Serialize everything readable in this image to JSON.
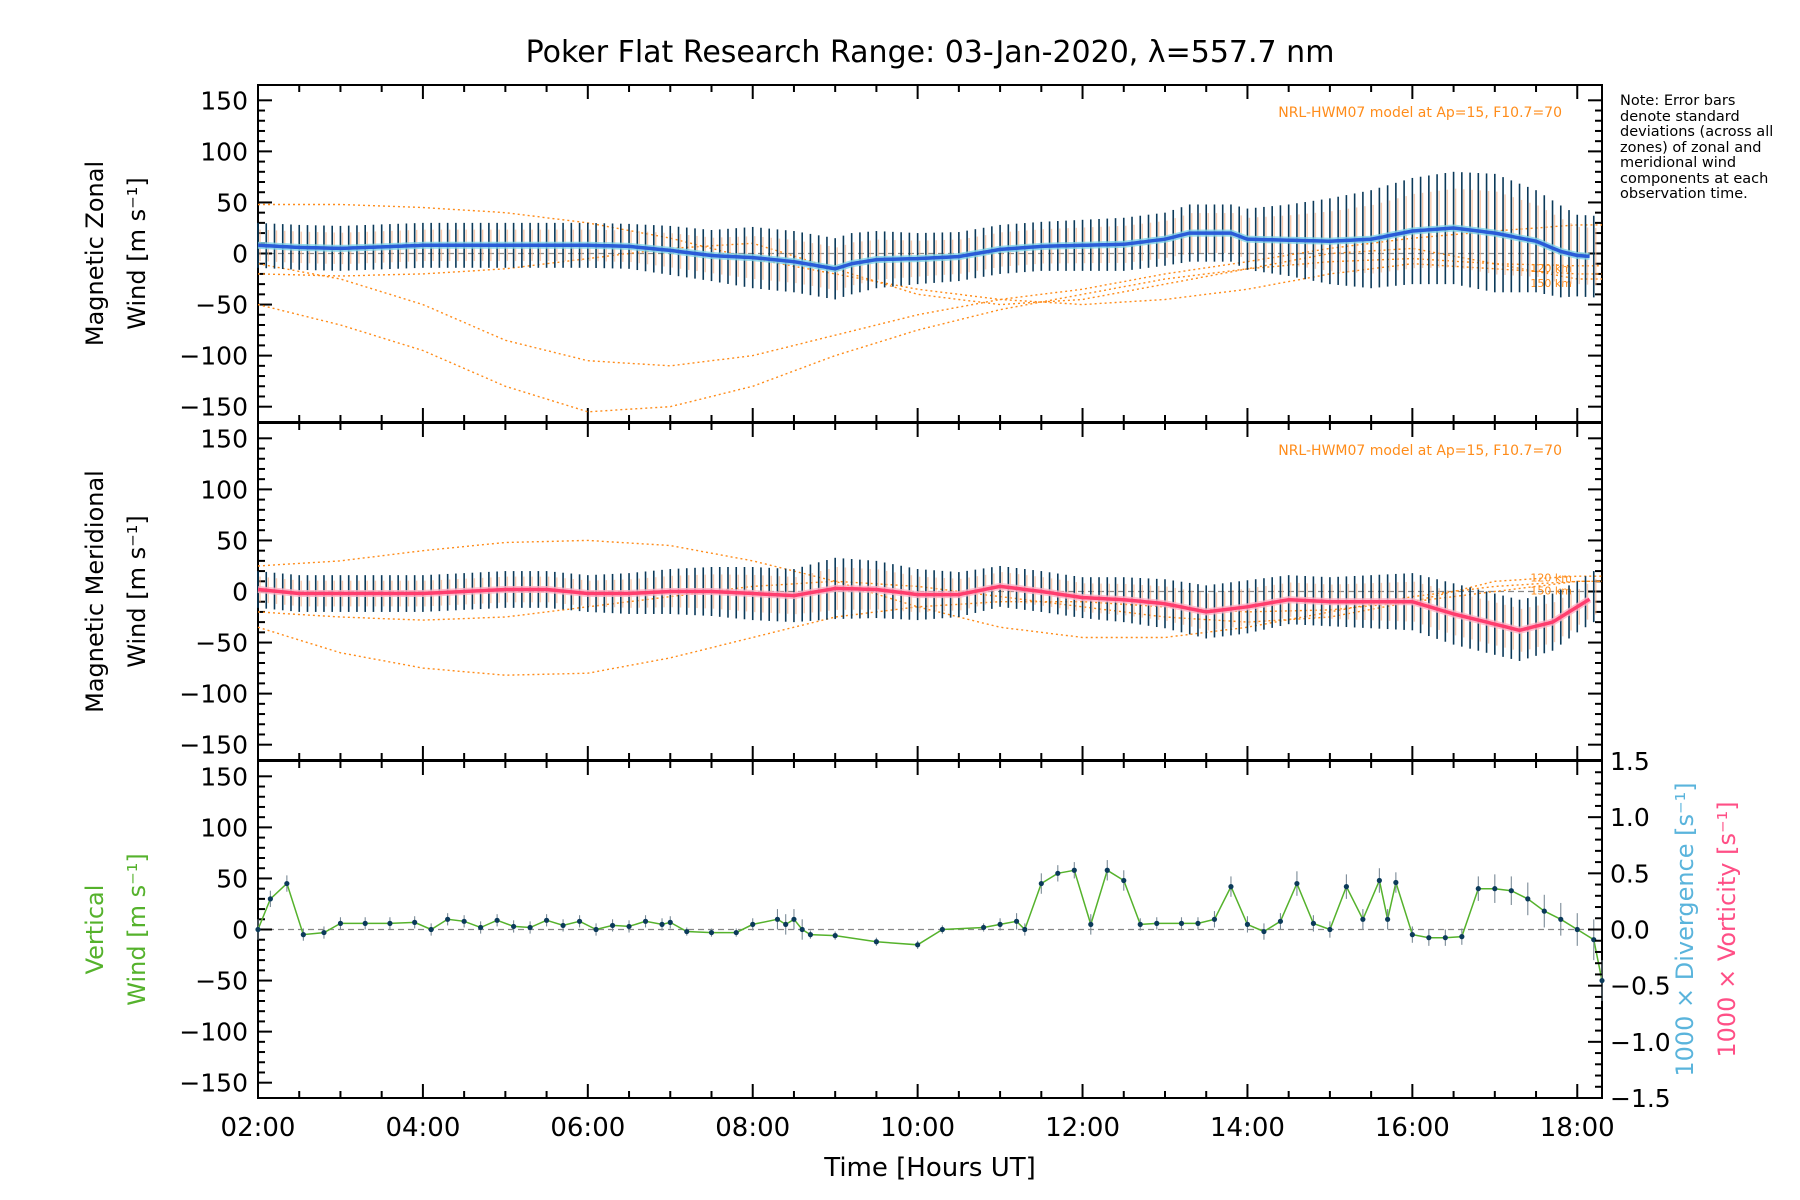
{
  "figure": {
    "title": "Poker Flat Research Range: 03-Jan-2020, λ=557.7 nm",
    "xlabel": "Time [Hours UT]",
    "note": "Note: Error bars denote standard deviations (across all zones) of zonal and meridional wind components at each observation time.",
    "model_label": "NRL-HWM07 model at Ap=15, F10.7=70",
    "height_labels": [
      "120 km",
      "150 km"
    ]
  },
  "colors": {
    "zonal_mean": "#2a5bd7",
    "zonal_highlight": "#7fd3e8",
    "meridional_mean": "#ff3d6e",
    "vertical": "#55b22c",
    "vertical_points": "#0b3a5a",
    "model": "#ff8c1a",
    "scatter": "#b9b2e6",
    "divergence_axis": "#5ab4dc",
    "vorticity_axis": "#ff4f86",
    "errbar": "#0b3a5a"
  },
  "chart_data": [
    {
      "panel": "zonal",
      "type": "line",
      "ylabel_line1": "Magnetic Zonal",
      "ylabel_line2": "Wind [m s⁻¹]",
      "xlim": [
        2.0,
        18.3
      ],
      "ylim": [
        -165,
        165
      ],
      "yticks": [
        -150,
        -100,
        -50,
        0,
        50,
        100,
        150
      ],
      "xticks": [
        "02:00",
        "04:00",
        "06:00",
        "08:00",
        "10:00",
        "12:00",
        "14:00",
        "16:00",
        "18:00"
      ],
      "mean_wind": {
        "x": [
          2.0,
          2.5,
          3.0,
          4.0,
          5.0,
          6.0,
          6.5,
          7.0,
          7.5,
          8.0,
          8.5,
          9.0,
          9.2,
          9.5,
          10.0,
          10.5,
          11.0,
          11.5,
          12.0,
          12.5,
          13.0,
          13.3,
          13.8,
          14.0,
          14.5,
          15.0,
          15.5,
          16.0,
          16.5,
          17.0,
          17.5,
          17.8,
          18.0,
          18.2
        ],
        "y": [
          8,
          6,
          5,
          8,
          8,
          8,
          7,
          3,
          -2,
          -4,
          -8,
          -15,
          -10,
          -6,
          -5,
          -3,
          4,
          7,
          8,
          9,
          14,
          20,
          20,
          14,
          13,
          12,
          14,
          22,
          25,
          20,
          12,
          2,
          -2,
          -3
        ],
        "errors": [
          22,
          22,
          22,
          22,
          22,
          22,
          22,
          24,
          25,
          30,
          30,
          30,
          30,
          28,
          25,
          24,
          24,
          24,
          25,
          26,
          26,
          28,
          28,
          30,
          35,
          42,
          48,
          52,
          55,
          58,
          50,
          45,
          40,
          40
        ]
      },
      "model_curves": [
        {
          "x": [
            2.0,
            3.0,
            4.0,
            5.0,
            6.0,
            7.0,
            8.0,
            9.0,
            10.0,
            11.0,
            12.0,
            13.0,
            14.0,
            15.0,
            16.0,
            17.0,
            18.0,
            18.3
          ],
          "y": [
            -50,
            -70,
            -95,
            -130,
            -155,
            -150,
            -130,
            -100,
            -75,
            -55,
            -40,
            -25,
            -15,
            -8,
            -5,
            -10,
            -12,
            -12
          ]
        },
        {
          "x": [
            2.0,
            3.0,
            4.0,
            5.0,
            6.0,
            7.0,
            8.0,
            9.0,
            10.0,
            11.0,
            12.0,
            13.0,
            14.0,
            15.0,
            16.0,
            17.0,
            18.0,
            18.3
          ],
          "y": [
            -10,
            -25,
            -50,
            -85,
            -105,
            -110,
            -100,
            -80,
            -60,
            -45,
            -35,
            -20,
            -8,
            5,
            15,
            22,
            28,
            28
          ]
        },
        {
          "x": [
            2.0,
            3.0,
            4.0,
            5.0,
            6.0,
            7.0,
            8.0,
            9.0,
            10.0,
            11.0,
            12.0,
            13.0,
            14.0,
            15.0,
            16.0,
            17.0,
            18.0,
            18.3
          ],
          "y": [
            48,
            48,
            45,
            40,
            30,
            15,
            -5,
            -20,
            -35,
            -45,
            -50,
            -45,
            -35,
            -20,
            -10,
            -15,
            -20,
            -20
          ]
        },
        {
          "x": [
            2.0,
            3.0,
            4.0,
            5.0,
            6.0,
            7.0,
            8.0,
            9.0,
            10.0,
            11.0,
            12.0,
            13.0,
            14.0,
            15.0,
            16.0,
            17.0,
            18.0,
            18.3
          ],
          "y": [
            -20,
            -22,
            -20,
            -15,
            -5,
            5,
            10,
            -15,
            -40,
            -50,
            -45,
            -30,
            -15,
            0,
            5,
            -10,
            -25,
            -25
          ]
        }
      ]
    },
    {
      "panel": "meridional",
      "type": "line",
      "ylabel_line1": "Magnetic Meridional",
      "ylabel_line2": "Wind [m s⁻¹]",
      "xlim": [
        2.0,
        18.3
      ],
      "ylim": [
        -165,
        165
      ],
      "yticks": [
        -150,
        -100,
        -50,
        0,
        50,
        100,
        150
      ],
      "mean_wind": {
        "x": [
          2.0,
          2.5,
          3.0,
          4.0,
          5.0,
          5.5,
          6.0,
          6.5,
          7.0,
          7.5,
          8.0,
          8.5,
          9.0,
          9.5,
          10.0,
          10.5,
          11.0,
          11.5,
          12.0,
          12.5,
          13.0,
          13.5,
          14.0,
          14.5,
          15.0,
          15.5,
          16.0,
          16.5,
          17.0,
          17.3,
          17.7,
          18.0,
          18.2
        ],
        "y": [
          2,
          -2,
          -2,
          -2,
          2,
          2,
          -2,
          -2,
          0,
          0,
          -2,
          -4,
          3,
          2,
          -3,
          -3,
          5,
          0,
          -6,
          -8,
          -12,
          -20,
          -15,
          -8,
          -10,
          -10,
          -10,
          -22,
          -32,
          -38,
          -30,
          -15,
          -5
        ],
        "errors": [
          18,
          18,
          18,
          18,
          18,
          18,
          18,
          20,
          22,
          24,
          26,
          26,
          30,
          28,
          25,
          22,
          20,
          20,
          20,
          22,
          24,
          26,
          26,
          24,
          24,
          26,
          28,
          30,
          30,
          30,
          28,
          25,
          25
        ]
      },
      "model_curves": [
        {
          "x": [
            2.0,
            3.0,
            4.0,
            5.0,
            6.0,
            7.0,
            8.0,
            9.0,
            10.0,
            11.0,
            12.0,
            13.0,
            14.0,
            15.0,
            16.0,
            17.0,
            18.0,
            18.3
          ],
          "y": [
            -35,
            -60,
            -75,
            -82,
            -80,
            -65,
            -45,
            -25,
            -15,
            -10,
            -10,
            -15,
            -20,
            -18,
            -10,
            0,
            10,
            10
          ]
        },
        {
          "x": [
            2.0,
            3.0,
            4.0,
            5.0,
            6.0,
            7.0,
            8.0,
            9.0,
            10.0,
            11.0,
            12.0,
            13.0,
            14.0,
            15.0,
            16.0,
            17.0,
            18.0,
            18.3
          ],
          "y": [
            25,
            30,
            40,
            48,
            50,
            45,
            30,
            10,
            -15,
            -35,
            -45,
            -45,
            -35,
            -20,
            -5,
            5,
            10,
            10
          ]
        },
        {
          "x": [
            2.0,
            3.0,
            4.0,
            5.0,
            6.0,
            7.0,
            8.0,
            9.0,
            10.0,
            11.0,
            12.0,
            13.0,
            14.0,
            15.0,
            16.0,
            17.0,
            18.0,
            18.3
          ],
          "y": [
            -20,
            -25,
            -28,
            -25,
            -15,
            -5,
            5,
            10,
            5,
            -5,
            -15,
            -25,
            -30,
            -25,
            -10,
            10,
            15,
            15
          ]
        }
      ]
    },
    {
      "panel": "vertical",
      "type": "line",
      "ylabel_line1": "Vertical",
      "ylabel_line2": "Wind [m s⁻¹]",
      "ylabel_right1": "1000 × Divergence [s⁻¹]",
      "ylabel_right2": "1000 × Vorticity [s⁻¹]",
      "xlim": [
        2.0,
        18.3
      ],
      "ylim": [
        -165,
        165
      ],
      "yticks": [
        -150,
        -100,
        -50,
        0,
        50,
        100,
        150
      ],
      "ylim_right": [
        -1.5,
        1.5
      ],
      "yticks_right": [
        "−1.5",
        "−1.0",
        "−0.5",
        "0.0",
        "0.5",
        "1.0",
        "1.5"
      ],
      "x": [
        2.0,
        2.15,
        2.35,
        2.55,
        2.8,
        3.0,
        3.3,
        3.6,
        3.9,
        4.1,
        4.3,
        4.5,
        4.7,
        4.9,
        5.1,
        5.3,
        5.5,
        5.7,
        5.9,
        6.1,
        6.3,
        6.5,
        6.7,
        6.9,
        7.0,
        7.2,
        7.5,
        7.8,
        8.0,
        8.3,
        8.4,
        8.5,
        8.6,
        8.7,
        9.0,
        9.5,
        10.0,
        10.3,
        10.8,
        11.0,
        11.2,
        11.3,
        11.5,
        11.7,
        11.9,
        12.1,
        12.3,
        12.5,
        12.7,
        12.9,
        13.2,
        13.4,
        13.6,
        13.8,
        14.0,
        14.2,
        14.4,
        14.6,
        14.8,
        15.0,
        15.2,
        15.4,
        15.6,
        15.7,
        15.8,
        16.0,
        16.2,
        16.4,
        16.6,
        16.8,
        17.0,
        17.2,
        17.4,
        17.6,
        17.8,
        18.0,
        18.2,
        18.3
      ],
      "y": [
        0,
        30,
        45,
        -5,
        -3,
        6,
        6,
        6,
        7,
        0,
        10,
        8,
        2,
        9,
        3,
        2,
        9,
        4,
        8,
        0,
        4,
        3,
        8,
        5,
        7,
        -2,
        -3,
        -3,
        5,
        10,
        5,
        10,
        0,
        -5,
        -6,
        -12,
        -15,
        0,
        2,
        5,
        8,
        0,
        45,
        55,
        58,
        5,
        58,
        48,
        5,
        6,
        6,
        6,
        10,
        42,
        5,
        -2,
        8,
        45,
        6,
        0,
        42,
        10,
        48,
        10,
        46,
        -5,
        -8,
        -8,
        -7,
        40,
        40,
        38,
        30,
        18,
        10,
        0,
        -10,
        -50
      ],
      "errors": [
        10,
        8,
        8,
        6,
        6,
        6,
        6,
        6,
        6,
        6,
        6,
        6,
        6,
        6,
        6,
        6,
        6,
        6,
        6,
        6,
        6,
        6,
        6,
        6,
        6,
        4,
        4,
        4,
        6,
        10,
        10,
        10,
        10,
        4,
        4,
        4,
        4,
        4,
        4,
        6,
        8,
        6,
        10,
        8,
        8,
        10,
        10,
        10,
        6,
        6,
        6,
        6,
        8,
        10,
        8,
        8,
        8,
        12,
        8,
        8,
        12,
        10,
        12,
        10,
        10,
        8,
        8,
        8,
        8,
        12,
        14,
        14,
        16,
        16,
        16,
        16,
        20,
        20
      ]
    }
  ]
}
